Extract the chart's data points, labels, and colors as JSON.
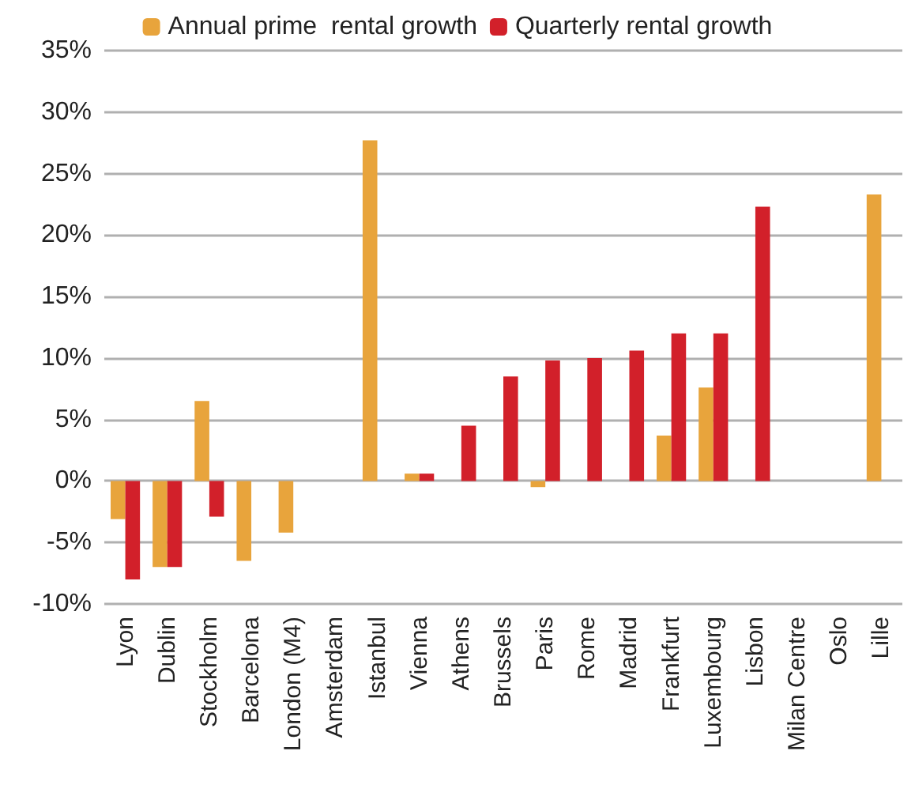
{
  "chart_data": {
    "type": "bar",
    "categories": [
      "Lyon",
      "Dublin",
      "Stockholm",
      "Barcelona",
      "London (M4)",
      "Amsterdam",
      "Istanbul",
      "Vienna",
      "Athens",
      "Brussels",
      "Paris",
      "Rome",
      "Madrid",
      "Frankfurt",
      "Luxembourg",
      "Lisbon",
      "Milan Centre",
      "Oslo",
      "Lille"
    ],
    "series": [
      {
        "name": "Annual prime  rental growth",
        "color": "#e8a43c",
        "values": [
          -3.1,
          -7,
          6.5,
          -6.5,
          -4.2,
          null,
          27.7,
          0.6,
          null,
          null,
          -0.5,
          null,
          null,
          3.7,
          7.6,
          null,
          null,
          null,
          23.3
        ]
      },
      {
        "name": "Quarterly rental growth",
        "color": "#d2202a",
        "values": [
          -8,
          -7,
          -2.9,
          null,
          null,
          null,
          null,
          0.6,
          4.5,
          8.5,
          9.8,
          10,
          10.6,
          12,
          12,
          22.3,
          null,
          null,
          null
        ]
      }
    ],
    "ylim": [
      -10,
      35
    ],
    "yticks": [
      {
        "value": -10,
        "label": "-10%"
      },
      {
        "value": -5,
        "label": "-5%"
      },
      {
        "value": 0,
        "label": "0%"
      },
      {
        "value": 5,
        "label": "5%"
      },
      {
        "value": 10,
        "label": "10%"
      },
      {
        "value": 15,
        "label": "15%"
      },
      {
        "value": 20,
        "label": "20%"
      },
      {
        "value": 25,
        "label": "25%"
      },
      {
        "value": 30,
        "label": "30%"
      },
      {
        "value": 35,
        "label": "35%"
      }
    ],
    "grid": "y",
    "legend": "top"
  }
}
